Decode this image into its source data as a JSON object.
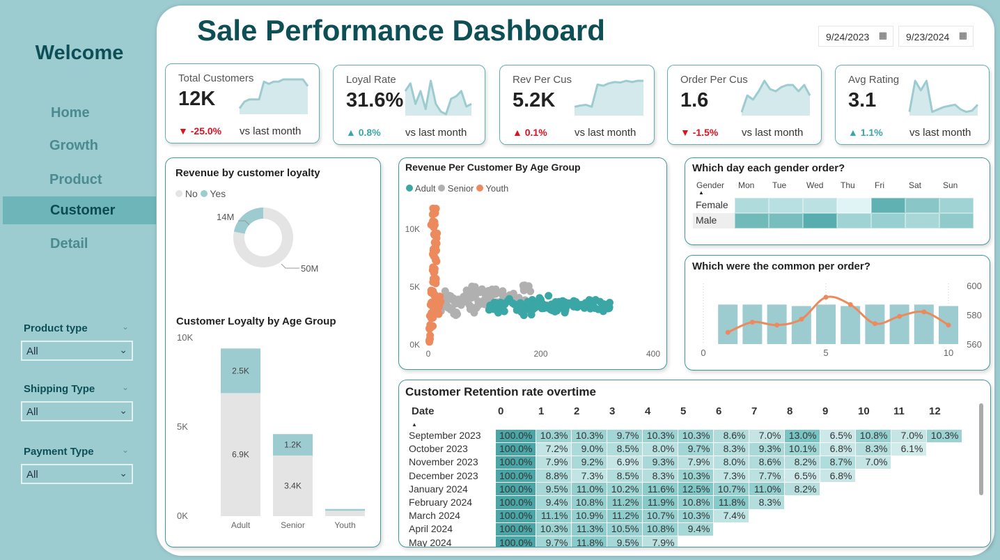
{
  "sidebar": {
    "welcome": "Welcome",
    "nav": [
      {
        "label": "Home"
      },
      {
        "label": "Growth"
      },
      {
        "label": "Product"
      },
      {
        "label": "Customer",
        "selected": true
      },
      {
        "label": "Detail"
      }
    ],
    "filters": [
      {
        "label": "Product type",
        "value": "All"
      },
      {
        "label": "Shipping Type",
        "value": "All"
      },
      {
        "label": "Payment Type",
        "value": "All"
      }
    ]
  },
  "header": {
    "title": "Sale Performance Dashboard",
    "start_date": "9/24/2023",
    "end_date": "9/23/2024",
    "calendar_icon": "calendar-icon"
  },
  "colors": {
    "accent": "#9ccbd0",
    "dark_teal": "#0d4f55",
    "down": "#e01020",
    "up": "#3aa6a6",
    "orange": "#ec8a5e",
    "grey": "#e4e4e4"
  },
  "kpis": [
    {
      "label": "Total Customers",
      "value": "12K",
      "change": "-25.0%",
      "direction": "down",
      "compare": "vs last month",
      "spark": [
        2,
        5,
        6,
        6,
        6,
        14,
        13,
        14,
        14,
        15,
        15,
        15,
        15,
        15,
        12
      ]
    },
    {
      "label": "Loyal Rate",
      "value": "31.6%",
      "change": "0.8%",
      "direction": "up",
      "compare": "vs last month",
      "spark": [
        9,
        12,
        4,
        9,
        2,
        13,
        4,
        1,
        0,
        6,
        7,
        9,
        3,
        4
      ]
    },
    {
      "label": "Rev Per Cus",
      "value": "5.2K",
      "change": "0.1%",
      "direction": "up",
      "compare": "vs last month",
      "spark": [
        3,
        3.5,
        3.8,
        3,
        12,
        11.5,
        12.5,
        13,
        12.8,
        13.5,
        13,
        13.5,
        13.5
      ]
    },
    {
      "label": "Order Per Cus",
      "value": "1.6",
      "change": "-1.5%",
      "direction": "down",
      "compare": "vs last month",
      "spark": [
        1,
        9,
        7,
        11,
        16,
        12,
        11,
        13,
        14,
        14,
        11,
        14,
        9
      ]
    },
    {
      "label": "Avg Rating",
      "value": "3.1",
      "change": "1.1%",
      "direction": "up",
      "compare": "vs last month",
      "spark": [
        1,
        14,
        10,
        14,
        1,
        2,
        3,
        3.5,
        4,
        2,
        1,
        1.5,
        4
      ]
    }
  ],
  "loyalty_donut": {
    "title": "Revenue by customer loyalty",
    "legend": [
      "No",
      "Yes"
    ],
    "values": [
      {
        "name": "No",
        "value": 50,
        "label": "50M"
      },
      {
        "name": "Yes",
        "value": 14,
        "label": "14M"
      }
    ]
  },
  "chart_data": [
    {
      "type": "bar",
      "stacked": true,
      "title": "Customer Loyalty by Age Group",
      "categories": [
        "Adult",
        "Senior",
        "Youth"
      ],
      "series": [
        {
          "name": "No",
          "values": [
            6.9,
            3.4,
            0.3
          ],
          "labels": [
            "6.9K",
            "3.4K",
            ""
          ]
        },
        {
          "name": "Yes",
          "values": [
            2.5,
            1.2,
            0.1
          ],
          "labels": [
            "2.5K",
            "1.2K",
            ""
          ]
        }
      ],
      "ylim": [
        0,
        10
      ],
      "yticks": [
        "0K",
        "5K",
        "10K"
      ]
    },
    {
      "type": "scatter",
      "title": "Revenue Per Customer By Age Group",
      "legend": [
        "Adult",
        "Senior",
        "Youth"
      ],
      "xlim": [
        0,
        400
      ],
      "ylim": [
        0,
        12000
      ],
      "xticks": [
        "0",
        "200",
        "400"
      ],
      "yticks": [
        "0K",
        "5K",
        "10K"
      ],
      "series": [
        {
          "name": "Adult",
          "points": [
            [
              110,
              3400
            ],
            [
              130,
              3200
            ],
            [
              150,
              3600
            ],
            [
              170,
              3300
            ],
            [
              190,
              3500
            ],
            [
              210,
              3400
            ],
            [
              230,
              3300
            ],
            [
              250,
              3600
            ],
            [
              270,
              3400
            ],
            [
              290,
              3500
            ],
            [
              310,
              3300
            ],
            [
              320,
              3500
            ],
            [
              200,
              3900
            ],
            [
              180,
              3000
            ],
            [
              240,
              3100
            ]
          ]
        },
        {
          "name": "Senior",
          "points": [
            [
              20,
              3000
            ],
            [
              30,
              3600
            ],
            [
              40,
              4200
            ],
            [
              50,
              2800
            ],
            [
              60,
              3800
            ],
            [
              70,
              4400
            ],
            [
              80,
              3200
            ],
            [
              90,
              4600
            ],
            [
              100,
              3500
            ],
            [
              110,
              4000
            ],
            [
              120,
              4800
            ],
            [
              130,
              3300
            ],
            [
              145,
              4300
            ],
            [
              160,
              3700
            ],
            [
              170,
              4700
            ]
          ]
        },
        {
          "name": "Youth",
          "points": [
            [
              3,
              500
            ],
            [
              5,
              1500
            ],
            [
              6,
              2500
            ],
            [
              8,
              3500
            ],
            [
              9,
              4500
            ],
            [
              10,
              5500
            ],
            [
              11,
              6500
            ],
            [
              12,
              7500
            ],
            [
              13,
              8500
            ],
            [
              14,
              9500
            ],
            [
              8,
              10500
            ],
            [
              10,
              11500
            ],
            [
              15,
              3000
            ],
            [
              18,
              4000
            ],
            [
              20,
              3500
            ]
          ]
        }
      ]
    },
    {
      "type": "heatmap",
      "title": "Which day each gender order?",
      "row_header": "Gender",
      "columns": [
        "Mon",
        "Tue",
        "Wed",
        "Thu",
        "Fri",
        "Sat",
        "Sun"
      ],
      "rows": [
        "Female",
        "Male"
      ],
      "intensity": [
        [
          0.35,
          0.3,
          0.28,
          0.05,
          0.85,
          0.6,
          0.45
        ],
        [
          0.75,
          0.7,
          0.9,
          0.45,
          0.5,
          0.4,
          0.55
        ]
      ]
    },
    {
      "type": "bar+line",
      "title": "Which were the common per order?",
      "x": [
        1,
        2,
        3,
        4,
        5,
        6,
        7,
        8,
        9,
        10
      ],
      "xticks": [
        "0",
        "5",
        "10"
      ],
      "y2ticks": [
        "560",
        "580",
        "600"
      ],
      "ylim": [
        560,
        600
      ],
      "bars": [
        587,
        587,
        587,
        586,
        587,
        586,
        587,
        587,
        587,
        586
      ],
      "line": [
        568,
        575,
        573,
        577,
        592,
        587,
        574,
        579,
        582,
        573
      ]
    }
  ],
  "retention": {
    "title": "Customer Retention rate overtime",
    "date_header": "Date",
    "columns": [
      "0",
      "1",
      "2",
      "3",
      "4",
      "5",
      "6",
      "7",
      "8",
      "9",
      "10",
      "11",
      "12"
    ],
    "rows": [
      {
        "date": "September 2023",
        "values": [
          "100.0%",
          "10.3%",
          "10.3%",
          "9.7%",
          "10.3%",
          "10.3%",
          "8.6%",
          "7.0%",
          "13.0%",
          "6.5%",
          "10.8%",
          "7.0%",
          "10.3%"
        ]
      },
      {
        "date": "October 2023",
        "values": [
          "100.0%",
          "7.2%",
          "9.0%",
          "8.5%",
          "8.0%",
          "9.7%",
          "8.3%",
          "9.3%",
          "10.1%",
          "6.8%",
          "8.3%",
          "6.1%"
        ]
      },
      {
        "date": "November 2023",
        "values": [
          "100.0%",
          "7.9%",
          "9.2%",
          "6.9%",
          "9.3%",
          "7.9%",
          "8.0%",
          "8.6%",
          "8.2%",
          "8.7%",
          "7.0%"
        ]
      },
      {
        "date": "December 2023",
        "values": [
          "100.0%",
          "8.8%",
          "7.3%",
          "8.5%",
          "8.3%",
          "10.3%",
          "7.3%",
          "7.7%",
          "6.5%",
          "6.8%"
        ]
      },
      {
        "date": "January 2024",
        "values": [
          "100.0%",
          "9.5%",
          "11.0%",
          "10.2%",
          "11.6%",
          "12.5%",
          "10.7%",
          "11.0%",
          "8.2%"
        ]
      },
      {
        "date": "February 2024",
        "values": [
          "100.0%",
          "9.4%",
          "10.8%",
          "11.2%",
          "11.9%",
          "10.8%",
          "11.8%",
          "8.3%"
        ]
      },
      {
        "date": "March 2024",
        "values": [
          "100.0%",
          "11.1%",
          "10.9%",
          "11.2%",
          "10.7%",
          "10.3%",
          "7.4%"
        ]
      },
      {
        "date": "April 2024",
        "values": [
          "100.0%",
          "10.3%",
          "11.3%",
          "10.5%",
          "10.8%",
          "9.4%"
        ]
      },
      {
        "date": "May 2024",
        "values": [
          "100.0%",
          "9.7%",
          "11.8%",
          "9.5%",
          "7.9%"
        ]
      }
    ]
  }
}
